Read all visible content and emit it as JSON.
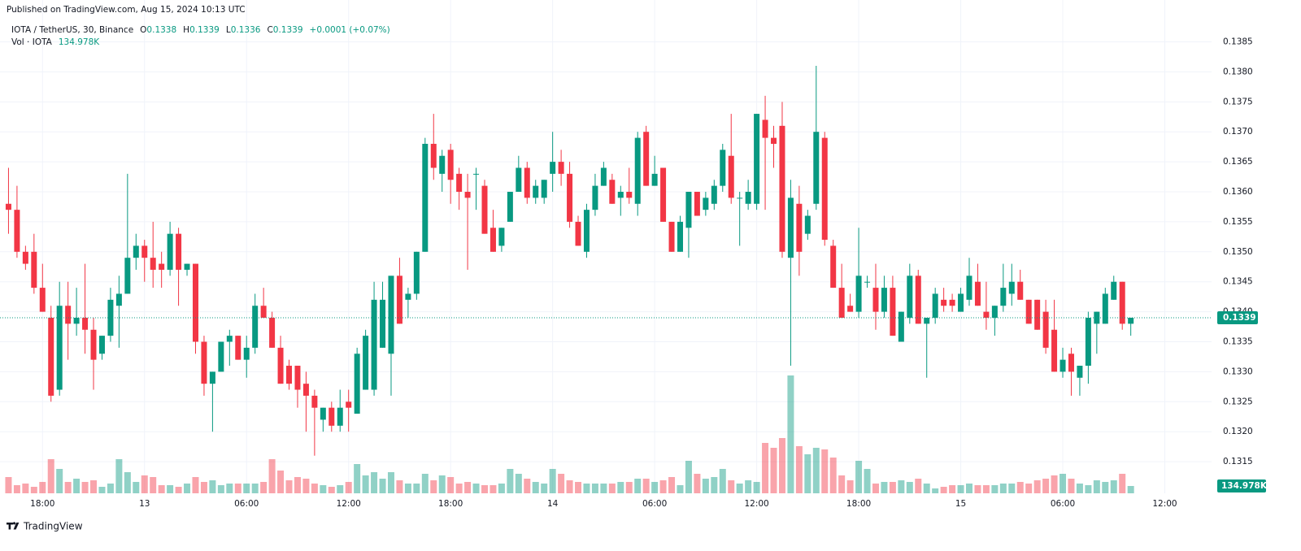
{
  "chart_data": {
    "type": "candlestick",
    "published": "Published on TradingView.com, Aug 15, 2024 10:13 UTC",
    "symbol": "IOTA / TetherUS, 30, Binance",
    "legend_keys": [
      "O",
      "H",
      "L",
      "C"
    ],
    "change": "+0.0001 (+0.07%)",
    "brand": "TradingView",
    "up_color": "#089981",
    "down_color": "#f23645",
    "grid": true,
    "xlim": [
      -1,
      141.5
    ],
    "xticks": [
      {
        "value": 4,
        "label": "18:00"
      },
      {
        "value": 16,
        "label": "13"
      },
      {
        "value": 28,
        "label": "06:00"
      },
      {
        "value": 40,
        "label": "12:00"
      },
      {
        "value": 52,
        "label": "18:00"
      },
      {
        "value": 64,
        "label": "14"
      },
      {
        "value": 76,
        "label": "06:00"
      },
      {
        "value": 88,
        "label": "12:00"
      },
      {
        "value": 100,
        "label": "18:00"
      },
      {
        "value": 112,
        "label": "15"
      },
      {
        "value": 124,
        "label": "06:00"
      },
      {
        "value": 136,
        "label": "12:00"
      }
    ],
    "ylim": [
      0.131,
      0.1389
    ],
    "yticks": [
      0.1315,
      {
        "value": 0.132,
        "label": "0.1320"
      },
      0.1325,
      {
        "value": 0.133,
        "label": "0.1330"
      },
      0.1335,
      {
        "value": 0.134,
        "label": "0.1340"
      },
      0.1345,
      {
        "value": 0.135,
        "label": "0.1350"
      },
      0.1355,
      {
        "value": 0.136,
        "label": "0.1360"
      },
      0.1365,
      {
        "value": 0.137,
        "label": "0.1370"
      },
      0.1375,
      {
        "value": 0.138,
        "label": "0.1380"
      },
      0.1385
    ],
    "open": [
      0.1358,
      0.1357,
      0.135,
      0.135,
      0.1344,
      0.1339,
      0.1327,
      0.1341,
      0.1338,
      0.1339,
      0.1337,
      0.1333,
      0.1336,
      0.1341,
      0.1343,
      0.1349,
      0.1351,
      0.1349,
      0.1348,
      0.1347,
      0.1353,
      0.1347,
      0.1348,
      0.1335,
      0.1328,
      0.133,
      0.1335,
      0.1336,
      0.1332,
      0.1334,
      0.1341,
      0.1339,
      0.1334,
      0.1331,
      0.1331,
      0.1328,
      0.1326,
      0.1322,
      0.1324,
      0.1321,
      0.1325,
      0.1323,
      0.1327,
      0.1327,
      0.1334,
      0.1333,
      0.1346,
      0.1342,
      0.1343,
      0.135,
      0.1368,
      0.1363,
      0.1367,
      0.1363,
      0.136,
      0.1363,
      0.1361,
      0.1354,
      0.1351,
      0.1355,
      0.136,
      0.1364,
      0.1359,
      0.1359,
      0.1363,
      0.1365,
      0.1363,
      0.1355,
      0.135,
      0.1357,
      0.1361,
      0.1362,
      0.1359,
      0.136,
      0.1358,
      0.137,
      0.1361,
      0.1364,
      0.1355,
      0.135,
      0.1354,
      0.136,
      0.1357,
      0.1358,
      0.1361,
      0.1366,
      0.1359,
      0.1358,
      0.1358,
      0.1372,
      0.1369,
      0.1371,
      0.1349,
      0.1358,
      0.1353,
      0.1358,
      0.1369,
      0.1351,
      0.1344,
      0.1341,
      0.134,
      0.1345,
      0.1344,
      0.134,
      0.1344,
      0.1335,
      0.1339,
      0.1346,
      0.1338,
      0.1339,
      0.1342,
      0.1342,
      0.134,
      0.1342,
      0.1345,
      0.134,
      0.1339,
      0.1341,
      0.1343,
      0.1345,
      0.1342,
      0.1342,
      0.134,
      0.1337,
      0.133,
      0.1333,
      0.1329,
      0.1331,
      0.1338,
      0.1338,
      0.1342,
      0.1345,
      0.1338
    ],
    "high": [
      0.1364,
      0.1361,
      0.1351,
      0.1353,
      0.1348,
      0.1341,
      0.1345,
      0.1345,
      0.1344,
      0.1348,
      0.1339,
      0.1336,
      0.1344,
      0.1346,
      0.1363,
      0.1353,
      0.1352,
      0.1355,
      0.135,
      0.1355,
      0.1354,
      0.1348,
      0.1348,
      0.1336,
      0.133,
      0.1335,
      0.1337,
      0.1336,
      0.1336,
      0.1343,
      0.1344,
      0.134,
      0.1336,
      0.1332,
      0.1331,
      0.133,
      0.1327,
      0.1324,
      0.1325,
      0.1327,
      0.1327,
      0.1334,
      0.1337,
      0.1345,
      0.1345,
      0.1346,
      0.1349,
      0.1344,
      0.135,
      0.1369,
      0.1373,
      0.1367,
      0.1368,
      0.1364,
      0.1363,
      0.1364,
      0.1362,
      0.1357,
      0.1354,
      0.136,
      0.1366,
      0.1365,
      0.1362,
      0.1362,
      0.137,
      0.1367,
      0.1365,
      0.1356,
      0.1358,
      0.1363,
      0.1365,
      0.1363,
      0.1361,
      0.1364,
      0.137,
      0.1371,
      0.1366,
      0.1364,
      0.1355,
      0.1356,
      0.136,
      0.136,
      0.136,
      0.1362,
      0.1368,
      0.1373,
      0.136,
      0.1362,
      0.1373,
      0.1376,
      0.1371,
      0.1375,
      0.1362,
      0.1361,
      0.1357,
      0.1381,
      0.137,
      0.1352,
      0.1348,
      0.1343,
      0.1354,
      0.1346,
      0.1348,
      0.1346,
      0.1346,
      0.134,
      0.1348,
      0.1347,
      0.1339,
      0.1344,
      0.1344,
      0.1343,
      0.1344,
      0.1349,
      0.1348,
      0.1345,
      0.1341,
      0.1348,
      0.1348,
      0.1347,
      0.1342,
      0.1342,
      0.1342,
      0.1342,
      0.1334,
      0.1334,
      0.1331,
      0.134,
      0.134,
      0.1344,
      0.1346,
      0.1345,
      0.1339
    ],
    "low": [
      0.1353,
      0.1349,
      0.1347,
      0.1343,
      0.134,
      0.1325,
      0.1326,
      0.1332,
      0.1336,
      0.1333,
      0.1327,
      0.1332,
      0.1335,
      0.1334,
      0.1343,
      0.1347,
      0.1345,
      0.1344,
      0.1344,
      0.1346,
      0.1341,
      0.1346,
      0.1333,
      0.1326,
      0.132,
      0.133,
      0.1331,
      0.1332,
      0.1329,
      0.1333,
      0.1339,
      0.1334,
      0.1328,
      0.1327,
      0.1324,
      0.132,
      0.1316,
      0.132,
      0.132,
      0.132,
      0.132,
      0.1323,
      0.1327,
      0.1326,
      0.1334,
      0.1326,
      0.1338,
      0.1339,
      0.1342,
      0.135,
      0.1362,
      0.136,
      0.1358,
      0.1357,
      0.1347,
      0.1357,
      0.1353,
      0.135,
      0.135,
      0.1355,
      0.136,
      0.1358,
      0.1358,
      0.1358,
      0.136,
      0.1361,
      0.1354,
      0.1351,
      0.1349,
      0.1356,
      0.1361,
      0.1358,
      0.1356,
      0.1358,
      0.1356,
      0.1361,
      0.1361,
      0.1355,
      0.135,
      0.135,
      0.1349,
      0.1356,
      0.1356,
      0.1357,
      0.136,
      0.1358,
      0.1351,
      0.1357,
      0.1357,
      0.1357,
      0.1364,
      0.1349,
      0.1331,
      0.1346,
      0.1352,
      0.1357,
      0.1351,
      0.1344,
      0.1339,
      0.134,
      0.1339,
      0.1344,
      0.1337,
      0.1339,
      0.1336,
      0.1335,
      0.1338,
      0.1338,
      0.1329,
      0.1338,
      0.134,
      0.134,
      0.134,
      0.1341,
      0.1341,
      0.1337,
      0.1336,
      0.134,
      0.1341,
      0.1342,
      0.1338,
      0.1337,
      0.1333,
      0.133,
      0.1329,
      0.1326,
      0.1326,
      0.1328,
      0.1333,
      0.1338,
      0.1342,
      0.1337,
      0.1336
    ],
    "close": [
      0.1357,
      0.135,
      0.1348,
      0.1344,
      0.134,
      0.1326,
      0.1341,
      0.1338,
      0.1339,
      0.1337,
      0.1332,
      0.1336,
      0.1342,
      0.1343,
      0.1349,
      0.1351,
      0.1349,
      0.1347,
      0.1347,
      0.1353,
      0.1347,
      0.1348,
      0.1335,
      0.1328,
      0.133,
      0.1335,
      0.1336,
      0.1332,
      0.1334,
      0.1341,
      0.1339,
      0.1334,
      0.1328,
      0.1328,
      0.1327,
      0.1326,
      0.1324,
      0.1324,
      0.1321,
      0.1324,
      0.1324,
      0.1333,
      0.1336,
      0.1342,
      0.1342,
      0.1346,
      0.1338,
      0.1343,
      0.135,
      0.1368,
      0.1364,
      0.1366,
      0.1362,
      0.136,
      0.1359,
      0.1363,
      0.1353,
      0.135,
      0.1354,
      0.136,
      0.1364,
      0.1359,
      0.1361,
      0.1362,
      0.1365,
      0.1363,
      0.1355,
      0.1351,
      0.1357,
      0.1361,
      0.1364,
      0.1358,
      0.136,
      0.1359,
      0.1369,
      0.1361,
      0.1363,
      0.1355,
      0.135,
      0.1355,
      0.136,
      0.1356,
      0.1359,
      0.1361,
      0.1367,
      0.1359,
      0.1359,
      0.136,
      0.1373,
      0.1369,
      0.1368,
      0.135,
      0.1359,
      0.135,
      0.1356,
      0.137,
      0.1352,
      0.1344,
      0.1339,
      0.134,
      0.1346,
      0.1345,
      0.134,
      0.1344,
      0.1336,
      0.134,
      0.1346,
      0.1338,
      0.1339,
      0.1343,
      0.1341,
      0.1341,
      0.1343,
      0.1346,
      0.1341,
      0.1339,
      0.1341,
      0.1344,
      0.1345,
      0.1342,
      0.1338,
      0.1337,
      0.1334,
      0.133,
      0.1332,
      0.133,
      0.1331,
      0.1339,
      0.134,
      0.1343,
      0.1345,
      0.1338,
      0.1339
    ],
    "volume": {
      "name": "Vol · IOTA",
      "label": "134.978K",
      "values": [
        300000,
        150000,
        180000,
        120000,
        210000,
        630000,
        450000,
        210000,
        270000,
        210000,
        240000,
        120000,
        180000,
        630000,
        390000,
        210000,
        330000,
        300000,
        150000,
        150000,
        120000,
        180000,
        300000,
        210000,
        240000,
        150000,
        180000,
        180000,
        180000,
        180000,
        210000,
        630000,
        420000,
        240000,
        300000,
        270000,
        180000,
        150000,
        120000,
        150000,
        210000,
        540000,
        330000,
        390000,
        270000,
        390000,
        240000,
        180000,
        180000,
        360000,
        240000,
        330000,
        300000,
        180000,
        210000,
        180000,
        150000,
        150000,
        180000,
        450000,
        360000,
        270000,
        210000,
        180000,
        450000,
        360000,
        240000,
        210000,
        180000,
        180000,
        180000,
        180000,
        210000,
        210000,
        270000,
        270000,
        210000,
        240000,
        300000,
        150000,
        600000,
        360000,
        270000,
        300000,
        450000,
        240000,
        180000,
        240000,
        210000,
        930000,
        840000,
        1020000,
        2175000,
        870000,
        720000,
        840000,
        810000,
        660000,
        330000,
        240000,
        600000,
        450000,
        180000,
        210000,
        210000,
        240000,
        210000,
        270000,
        180000,
        90000,
        120000,
        150000,
        150000,
        180000,
        150000,
        150000,
        150000,
        180000,
        180000,
        210000,
        180000,
        240000,
        270000,
        330000,
        360000,
        270000,
        180000,
        150000,
        240000,
        210000,
        240000,
        360000,
        134978
      ]
    }
  }
}
